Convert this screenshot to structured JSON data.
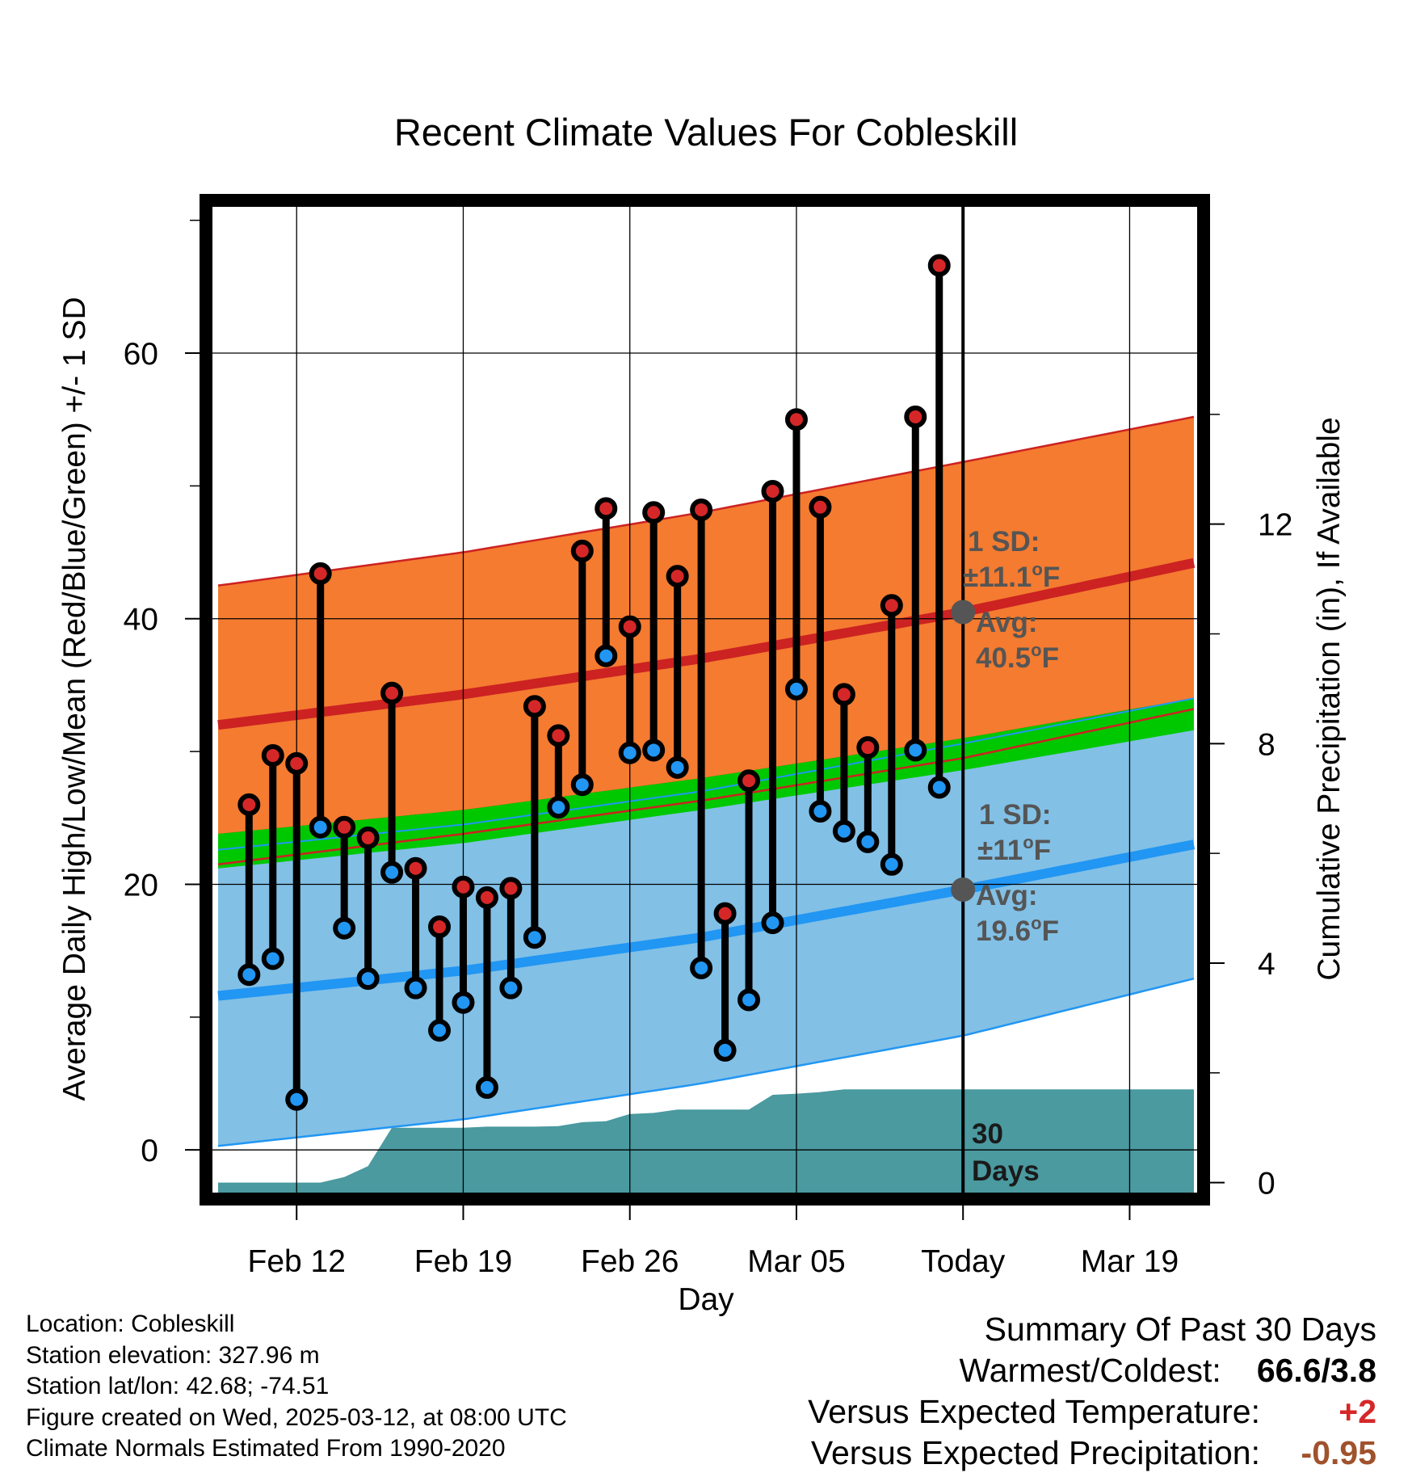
{
  "chart_data": {
    "type": "line",
    "title": "Recent Climate Values For Cobleskill",
    "xlabel": "Day",
    "ylabel": "Average Daily High/Low/Mean (Red/Blue/Green) +/- 1 SD",
    "y2label": "Cumulative Precipitation (in), If Available",
    "x_ticks": [
      "Feb 12",
      "Feb 19",
      "Feb 26",
      "Mar 05",
      "Today",
      "Mar 19"
    ],
    "x_tick_days": [
      12,
      19,
      26,
      33,
      40,
      47
    ],
    "xlim": [
      8.7,
      49.7
    ],
    "ylim": [
      -3.7,
      71.5
    ],
    "y_ticks": [
      0,
      20,
      40,
      60
    ],
    "y2lim": [
      -0.3,
      17.9
    ],
    "y2_ticks": [
      0,
      4,
      8,
      12
    ],
    "grid": true,
    "today_day": 40,
    "normals": {
      "day": [
        8.7,
        19,
        29,
        40,
        49.7
      ],
      "high_mean": [
        32.0,
        34.3,
        37.0,
        40.5,
        44.2
      ],
      "high_sd_upper": [
        42.5,
        45.0,
        48.0,
        51.8,
        55.2
      ],
      "high_sd_lower": [
        21.5,
        23.8,
        26.3,
        29.5,
        33.2
      ],
      "low_mean": [
        11.6,
        13.5,
        16.0,
        19.6,
        23.0
      ],
      "low_sd_upper": [
        22.6,
        24.5,
        27.0,
        30.6,
        34.0
      ],
      "low_sd_lower": [
        0.3,
        2.3,
        5.0,
        8.6,
        12.9
      ],
      "mean_upper": [
        23.8,
        25.6,
        28.0,
        31.0,
        34.0
      ],
      "mean_lower": [
        21.2,
        23.1,
        25.6,
        28.6,
        31.6
      ]
    },
    "series": [
      {
        "name": "High",
        "x": [
          10,
          11,
          12,
          13,
          14,
          15,
          16,
          17,
          18,
          19,
          20,
          21,
          22,
          23,
          24,
          25,
          26,
          27,
          28,
          29,
          30,
          31,
          32,
          33,
          34,
          35,
          36,
          37,
          38,
          39
        ],
        "values": [
          26.0,
          29.7,
          29.1,
          43.4,
          24.3,
          23.5,
          34.4,
          21.2,
          16.8,
          19.8,
          19.0,
          19.7,
          33.4,
          31.2,
          45.1,
          48.3,
          39.4,
          48.0,
          43.2,
          48.2,
          17.8,
          27.8,
          49.6,
          55.0,
          48.4,
          34.3,
          30.3,
          41.0,
          55.2,
          66.6
        ]
      },
      {
        "name": "Low",
        "x": [
          10,
          11,
          12,
          13,
          14,
          15,
          16,
          17,
          18,
          19,
          20,
          21,
          22,
          23,
          24,
          25,
          26,
          27,
          28,
          29,
          30,
          31,
          32,
          33,
          34,
          35,
          36,
          37,
          38,
          39
        ],
        "values": [
          13.2,
          14.4,
          3.8,
          24.3,
          16.7,
          12.9,
          20.9,
          12.2,
          9.0,
          11.1,
          4.7,
          12.2,
          16.0,
          25.8,
          27.5,
          37.2,
          29.9,
          30.1,
          28.8,
          13.7,
          7.5,
          11.3,
          17.1,
          34.7,
          25.5,
          24.0,
          23.2,
          21.5,
          30.1,
          27.3
        ]
      },
      {
        "name": "Precipitation",
        "x": [
          12,
          13,
          14,
          15,
          16,
          17,
          18,
          19,
          20,
          21,
          22,
          23,
          24,
          25,
          26,
          27,
          28,
          29,
          30,
          31,
          32,
          33,
          34,
          35,
          36,
          37,
          38,
          39,
          40,
          49.7
        ],
        "values": [
          0.0,
          0.0,
          0.1,
          0.3,
          1.0,
          1.0,
          1.0,
          1.0,
          1.02,
          1.02,
          1.02,
          1.03,
          1.1,
          1.12,
          1.25,
          1.27,
          1.33,
          1.33,
          1.33,
          1.33,
          1.6,
          1.62,
          1.65,
          1.7,
          1.7,
          1.7,
          1.7,
          1.7,
          1.7,
          1.7
        ]
      }
    ],
    "annotations": {
      "high_sd_label": "1 SD:",
      "high_sd_value": "±11.1",
      "high_avg_label": "Avg:",
      "high_avg_value": "40.5",
      "low_sd_label": "1 SD:",
      "low_sd_value": "±11",
      "low_avg_label": "Avg:",
      "low_avg_value": "19.6",
      "deg_unit": "o",
      "unit_letter": "F",
      "precip_line1": "30",
      "precip_line2": "Days"
    },
    "colors": {
      "high": "#d62728",
      "high_band": "#f47b30",
      "high_mean_line": "#cc2222",
      "low": "#2196f3",
      "low_band": "#82c0e6",
      "low_mean_line": "#2196f3",
      "mean_band": "#00c800",
      "precip": "#4a9aa0",
      "annotation": "#555555",
      "overlap": "#8b1a1a"
    }
  },
  "info": {
    "location": "Location: Cobleskill",
    "elevation": "Station elevation: 327.96 m",
    "latlon": "Station lat/lon: 42.68; -74.51",
    "created": "Figure created on Wed, 2025-03-12, at 08:00 UTC",
    "normals": "Climate Normals Estimated From 1990-2020"
  },
  "summary": {
    "title": "Summary Of Past 30 Days",
    "warmest_label": "Warmest/Coldest:",
    "warmest_value": "66.6/3.8",
    "temp_label": "Versus Expected Temperature:",
    "temp_value": "+2",
    "temp_color": "#d62728",
    "precip_label": "Versus Expected Precipitation:",
    "precip_value": "-0.95",
    "precip_color": "#a0522d"
  }
}
